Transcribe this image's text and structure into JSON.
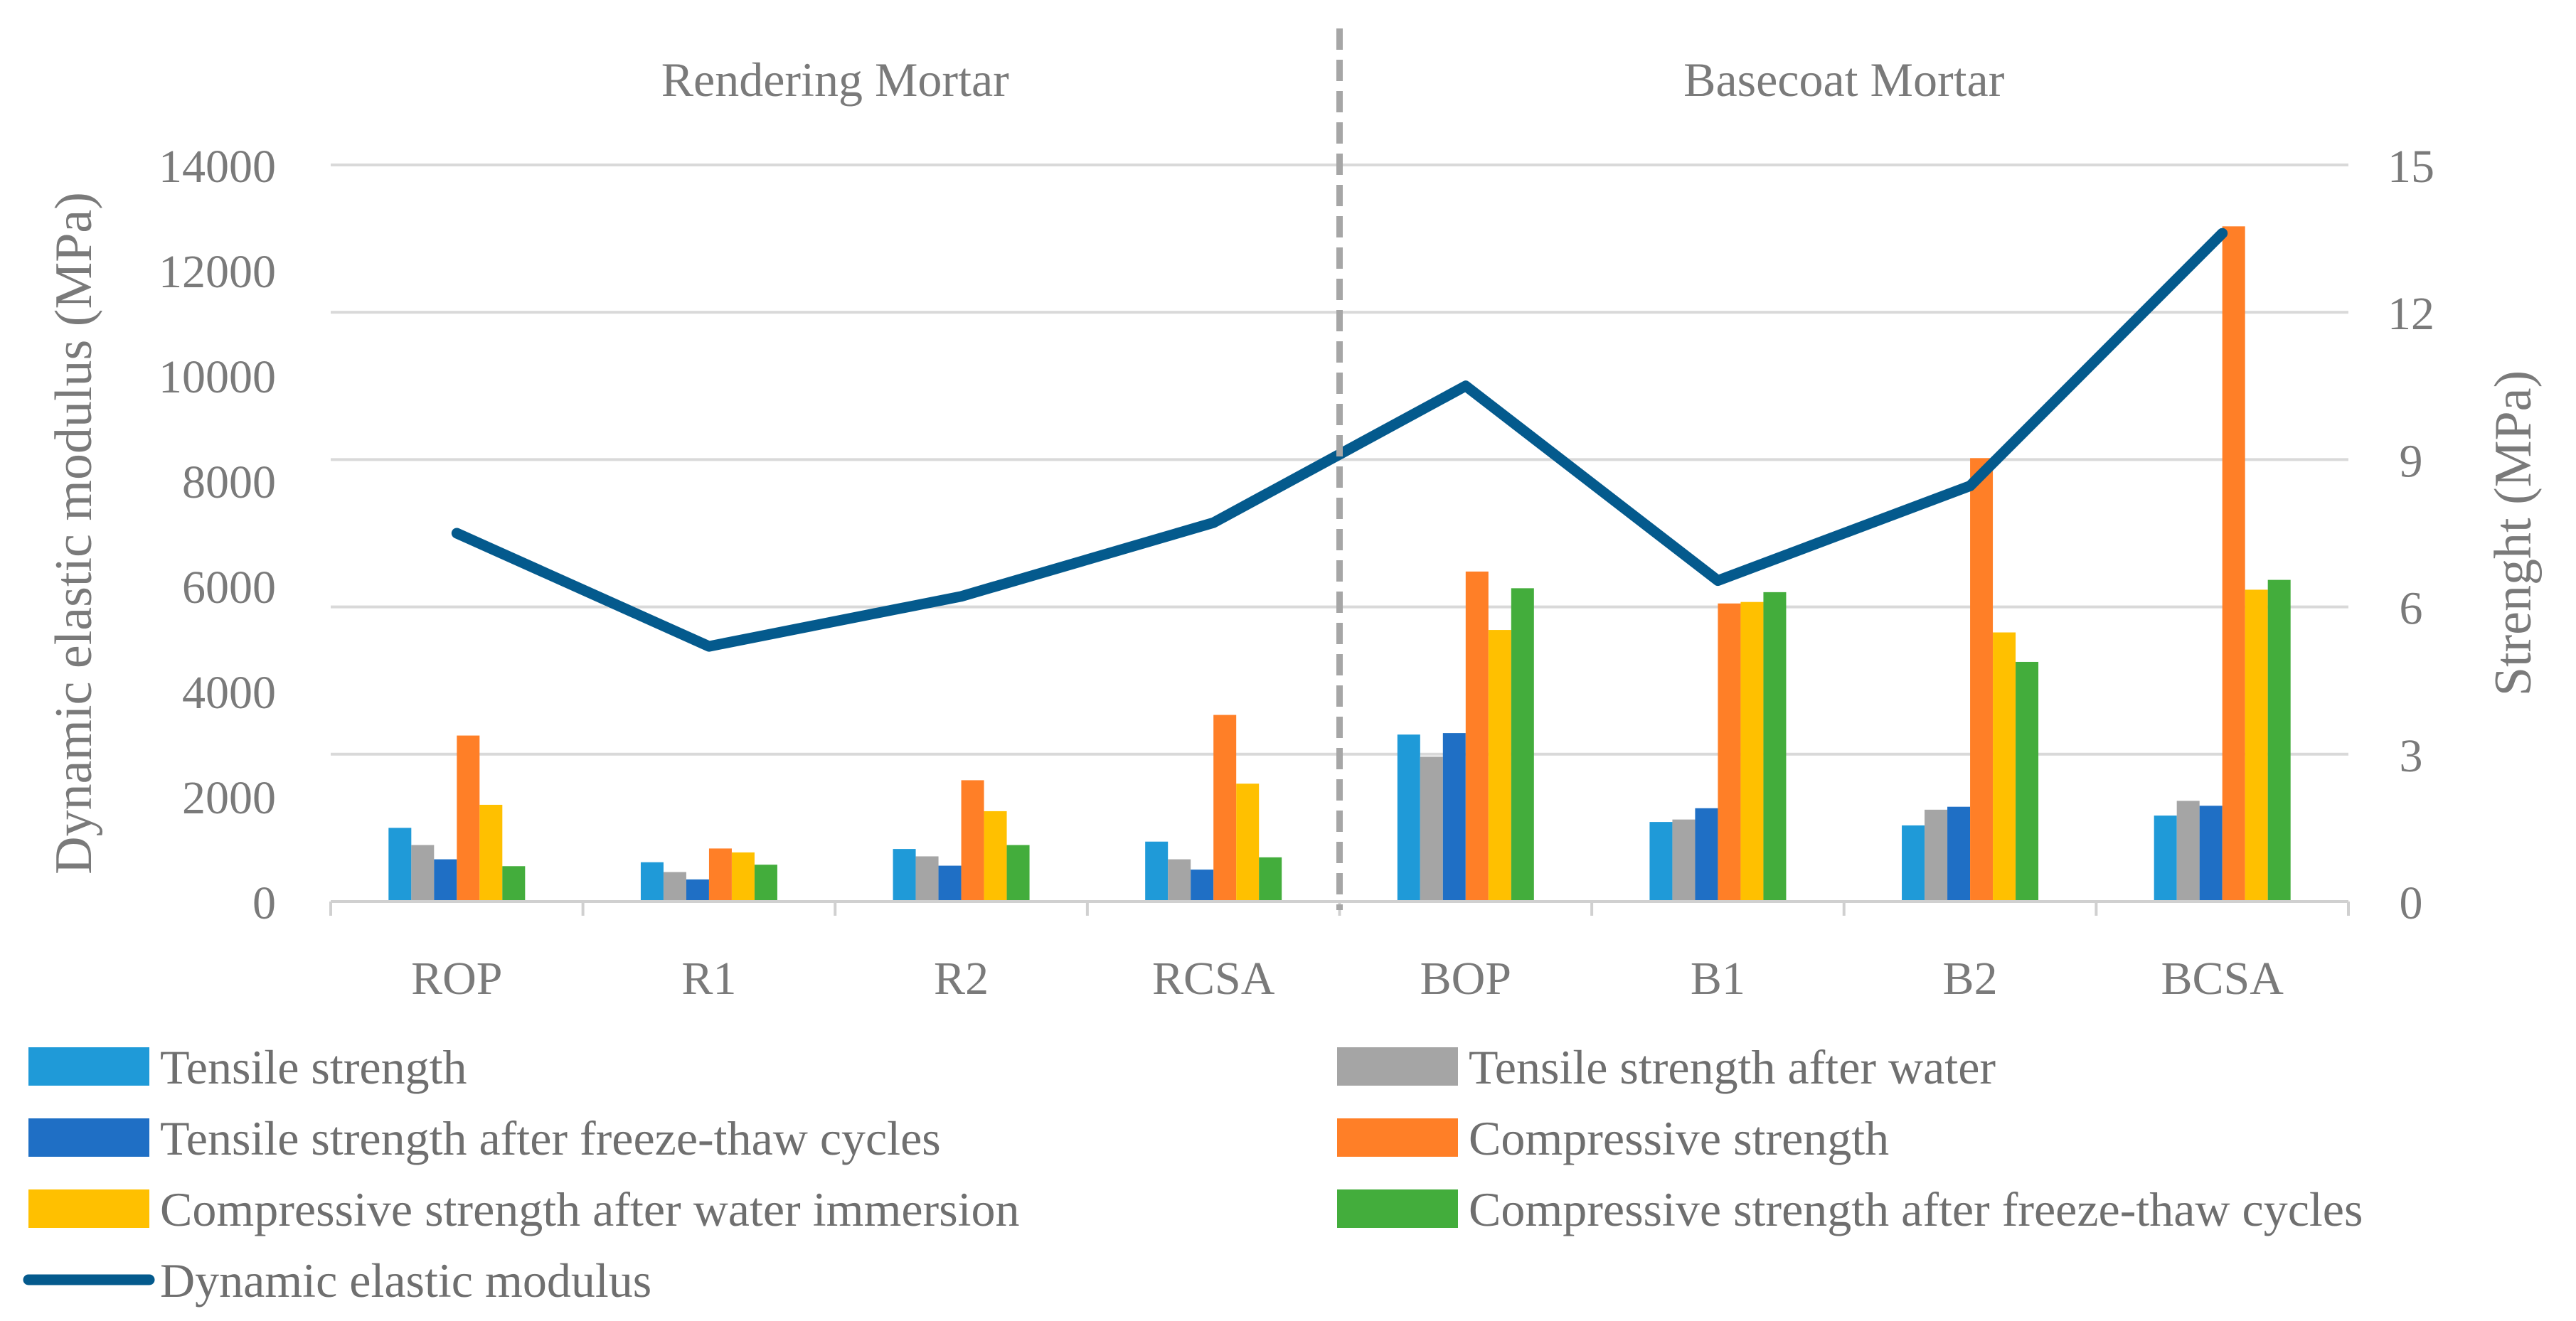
{
  "chart_data": {
    "type": "bar",
    "categories": [
      "ROP",
      "R1",
      "R2",
      "RCSA",
      "BOP",
      "B1",
      "B2",
      "BCSA"
    ],
    "groups": [
      {
        "title": "Rendering Mortar",
        "categories": [
          "ROP",
          "R1",
          "R2",
          "RCSA"
        ]
      },
      {
        "title": "Basecoat Mortar",
        "categories": [
          "BOP",
          "B1",
          "B2",
          "BCSA"
        ]
      }
    ],
    "series": [
      {
        "name": "Tensile strength",
        "axis": "right",
        "kind": "bar",
        "color": "#1f9ad8",
        "values": [
          1.5,
          0.8,
          1.07,
          1.22,
          3.4,
          1.62,
          1.55,
          1.75
        ]
      },
      {
        "name": "Tensile strength after water",
        "axis": "right",
        "kind": "bar",
        "color": "#a5a5a5",
        "values": [
          1.15,
          0.6,
          0.92,
          0.86,
          2.95,
          1.67,
          1.87,
          2.05
        ]
      },
      {
        "name": "Tensile strength after freeze-thaw cycles",
        "axis": "right",
        "kind": "bar",
        "color": "#1f6fc5",
        "values": [
          0.86,
          0.45,
          0.73,
          0.65,
          3.43,
          1.9,
          1.93,
          1.95
        ]
      },
      {
        "name": "Compressive strength",
        "axis": "right",
        "kind": "bar",
        "color": "#ff7f27",
        "values": [
          3.38,
          1.08,
          2.47,
          3.8,
          6.72,
          6.07,
          9.03,
          13.75
        ]
      },
      {
        "name": "Compressive strength after water immersion",
        "axis": "right",
        "kind": "bar",
        "color": "#ffc000",
        "values": [
          1.97,
          1.0,
          1.84,
          2.4,
          5.53,
          6.1,
          5.48,
          6.35
        ]
      },
      {
        "name": "Compressive strength after freeze-thaw cycles",
        "axis": "right",
        "kind": "bar",
        "color": "#43ad3c",
        "values": [
          0.72,
          0.75,
          1.15,
          0.9,
          6.38,
          6.3,
          4.88,
          6.55
        ]
      },
      {
        "name": "Dynamic elastic modulus",
        "axis": "left",
        "kind": "line",
        "color": "#045a8d",
        "values": [
          7000,
          4850,
          5800,
          7200,
          9800,
          6100,
          7900,
          12700
        ]
      }
    ],
    "y_left": {
      "label": "Dynamic elastic modulus (MPa)",
      "min": 0,
      "max": 14000,
      "ticks": [
        "0",
        "2000",
        "4000",
        "6000",
        "8000",
        "10000",
        "12000",
        "14000"
      ]
    },
    "y_right": {
      "label": "Strenght (MPa)",
      "min": 0,
      "max": 15,
      "ticks": [
        "0",
        "3",
        "6",
        "9",
        "12",
        "15"
      ]
    },
    "grid": true,
    "legend_position": "bottom"
  }
}
